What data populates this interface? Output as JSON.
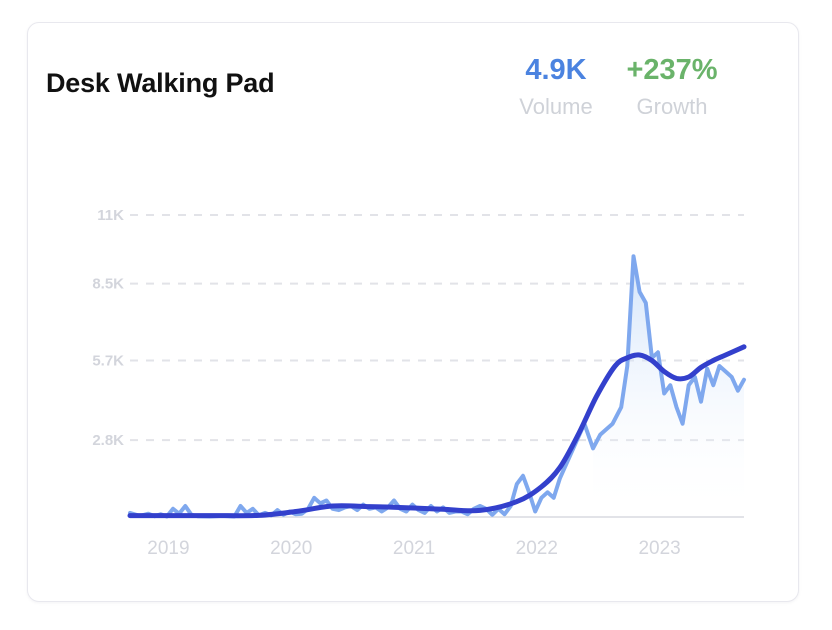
{
  "card": {
    "title": "Desk Walking Pad",
    "volume_value": "4.9K",
    "volume_label": "Volume",
    "growth_value": "+237%",
    "growth_label": "Growth"
  },
  "colors": {
    "volume": "#4b83e0",
    "growth": "#6ab36a",
    "raw_line": "#7fa8ee",
    "trend_line": "#3340cc",
    "grid": "#e2e3e8",
    "tick": "#d3d5dc"
  },
  "chart_data": {
    "type": "line",
    "title": "Desk Walking Pad",
    "xlabel": "",
    "ylabel": "",
    "xlim": [
      2018.85,
      2023.85
    ],
    "ylim": [
      0,
      11000
    ],
    "grid": true,
    "y_ticks": [
      {
        "value": 2800,
        "label": "2.8K"
      },
      {
        "value": 5700,
        "label": "5.7K"
      },
      {
        "value": 8500,
        "label": "8.5K"
      },
      {
        "value": 11000,
        "label": "11K"
      }
    ],
    "x_ticks": [
      {
        "value": 2019,
        "label": "2019"
      },
      {
        "value": 2020,
        "label": "2020"
      },
      {
        "value": 2021,
        "label": "2021"
      },
      {
        "value": 2022,
        "label": "2022"
      },
      {
        "value": 2023,
        "label": "2023"
      }
    ],
    "series": [
      {
        "kind": "raw",
        "points": [
          [
            2018.85,
            150
          ],
          [
            2018.93,
            40
          ],
          [
            2019.0,
            120
          ],
          [
            2019.05,
            30
          ],
          [
            2019.1,
            100
          ],
          [
            2019.15,
            20
          ],
          [
            2019.2,
            300
          ],
          [
            2019.25,
            120
          ],
          [
            2019.3,
            400
          ],
          [
            2019.35,
            80
          ],
          [
            2019.4,
            30
          ],
          [
            2019.5,
            20
          ],
          [
            2019.6,
            40
          ],
          [
            2019.7,
            20
          ],
          [
            2019.75,
            400
          ],
          [
            2019.8,
            150
          ],
          [
            2019.85,
            300
          ],
          [
            2019.9,
            60
          ],
          [
            2019.95,
            150
          ],
          [
            2020.0,
            60
          ],
          [
            2020.05,
            250
          ],
          [
            2020.1,
            80
          ],
          [
            2020.15,
            200
          ],
          [
            2020.2,
            100
          ],
          [
            2020.25,
            120
          ],
          [
            2020.3,
            300
          ],
          [
            2020.35,
            700
          ],
          [
            2020.4,
            500
          ],
          [
            2020.45,
            600
          ],
          [
            2020.5,
            300
          ],
          [
            2020.55,
            250
          ],
          [
            2020.6,
            350
          ],
          [
            2020.65,
            400
          ],
          [
            2020.7,
            250
          ],
          [
            2020.75,
            450
          ],
          [
            2020.8,
            300
          ],
          [
            2020.85,
            350
          ],
          [
            2020.9,
            200
          ],
          [
            2020.95,
            350
          ],
          [
            2021.0,
            600
          ],
          [
            2021.05,
            300
          ],
          [
            2021.1,
            200
          ],
          [
            2021.15,
            450
          ],
          [
            2021.2,
            250
          ],
          [
            2021.25,
            150
          ],
          [
            2021.3,
            400
          ],
          [
            2021.35,
            200
          ],
          [
            2021.4,
            350
          ],
          [
            2021.45,
            150
          ],
          [
            2021.5,
            200
          ],
          [
            2021.55,
            200
          ],
          [
            2021.6,
            100
          ],
          [
            2021.65,
            300
          ],
          [
            2021.7,
            400
          ],
          [
            2021.75,
            300
          ],
          [
            2021.8,
            80
          ],
          [
            2021.85,
            300
          ],
          [
            2021.9,
            100
          ],
          [
            2021.95,
            400
          ],
          [
            2022.0,
            1200
          ],
          [
            2022.05,
            1500
          ],
          [
            2022.1,
            900
          ],
          [
            2022.15,
            200
          ],
          [
            2022.2,
            700
          ],
          [
            2022.25,
            900
          ],
          [
            2022.3,
            700
          ],
          [
            2022.35,
            1400
          ],
          [
            2022.45,
            2400
          ],
          [
            2022.55,
            3400
          ],
          [
            2022.62,
            2500
          ],
          [
            2022.68,
            3000
          ],
          [
            2022.73,
            3200
          ],
          [
            2022.78,
            3400
          ],
          [
            2022.85,
            4000
          ],
          [
            2022.9,
            5500
          ],
          [
            2022.95,
            9500
          ],
          [
            2023.0,
            8200
          ],
          [
            2023.05,
            7800
          ],
          [
            2023.1,
            5800
          ],
          [
            2023.15,
            6000
          ],
          [
            2023.2,
            4500
          ],
          [
            2023.25,
            4800
          ],
          [
            2023.3,
            4000
          ],
          [
            2023.35,
            3400
          ],
          [
            2023.4,
            4800
          ],
          [
            2023.45,
            5100
          ],
          [
            2023.5,
            4200
          ],
          [
            2023.55,
            5400
          ],
          [
            2023.6,
            4800
          ],
          [
            2023.65,
            5500
          ],
          [
            2023.7,
            5300
          ],
          [
            2023.75,
            5100
          ],
          [
            2023.8,
            4600
          ],
          [
            2023.85,
            5000
          ]
        ]
      },
      {
        "kind": "trend",
        "points": [
          [
            2018.85,
            50
          ],
          [
            2019.5,
            50
          ],
          [
            2019.9,
            60
          ],
          [
            2020.2,
            200
          ],
          [
            2020.5,
            400
          ],
          [
            2020.8,
            380
          ],
          [
            2021.1,
            340
          ],
          [
            2021.4,
            280
          ],
          [
            2021.7,
            240
          ],
          [
            2022.0,
            560
          ],
          [
            2022.2,
            1100
          ],
          [
            2022.35,
            1800
          ],
          [
            2022.5,
            3000
          ],
          [
            2022.65,
            4400
          ],
          [
            2022.8,
            5500
          ],
          [
            2022.9,
            5800
          ],
          [
            2023.0,
            5900
          ],
          [
            2023.1,
            5700
          ],
          [
            2023.2,
            5300
          ],
          [
            2023.3,
            5050
          ],
          [
            2023.4,
            5100
          ],
          [
            2023.5,
            5450
          ],
          [
            2023.6,
            5700
          ],
          [
            2023.7,
            5900
          ],
          [
            2023.85,
            6200
          ]
        ]
      }
    ]
  }
}
